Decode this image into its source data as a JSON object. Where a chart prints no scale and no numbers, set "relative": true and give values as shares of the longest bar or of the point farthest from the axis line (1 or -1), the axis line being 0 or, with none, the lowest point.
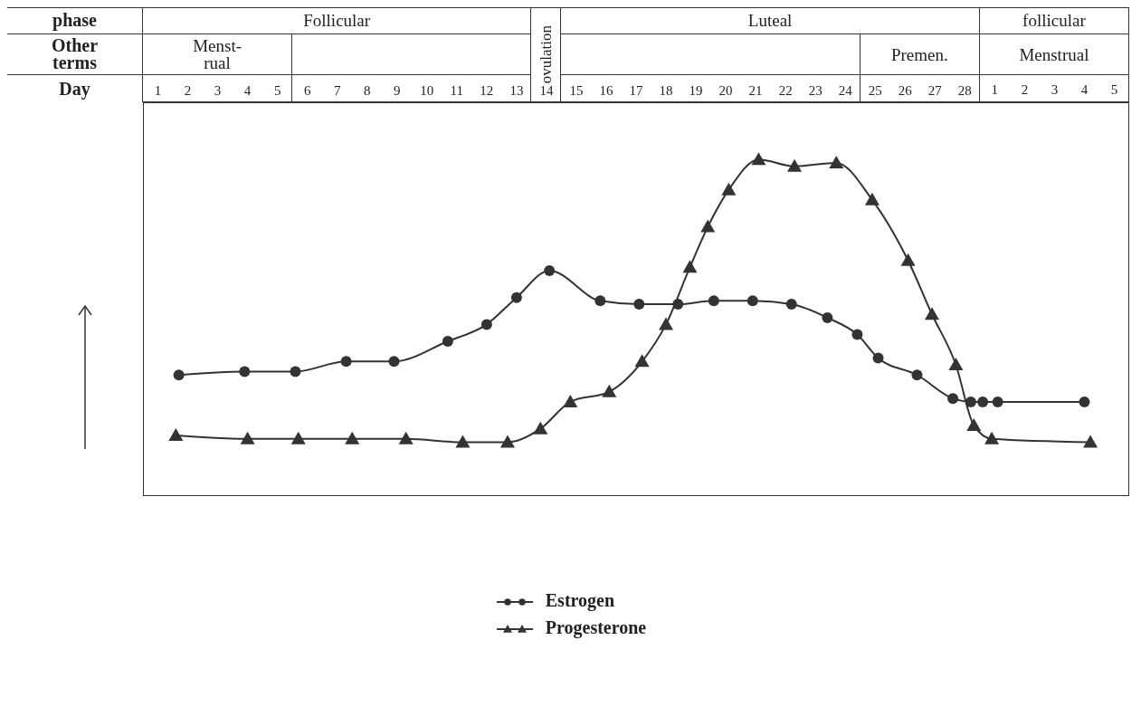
{
  "chart_data": {
    "type": "line",
    "relative": true,
    "legend": "bottom",
    "xlim": [
      0.5,
      33.5
    ],
    "xticks": [
      1,
      2,
      3,
      4,
      5,
      6,
      7,
      8,
      9,
      10,
      11,
      12,
      13,
      14,
      15,
      16,
      17,
      18,
      19,
      20,
      21,
      22,
      23,
      24,
      25,
      26,
      27,
      28
    ],
    "x2lim": [
      -27.5,
      5.5
    ],
    "x2ticks": [
      1,
      2,
      3,
      4,
      5
    ],
    "annotations": [
      "phase",
      "Other\nterms",
      "Day",
      "Follicular",
      "ovulation",
      "Luteal",
      "follicular",
      "Menst-\nrual",
      "Premen.",
      "Menstrual"
    ],
    "series": [
      {
        "name": "Estrogen",
        "color": "#333333",
        "marker": "circle",
        "x": [
          1.7,
          3.9,
          5.6,
          7.3,
          8.9,
          10.7,
          12,
          13,
          14.1,
          15.8,
          17.1,
          18.4,
          19.6,
          20.9,
          22.2,
          23.4,
          24.4,
          25.1,
          26.4,
          27.6,
          28.2,
          28.6,
          29.1,
          32
        ],
        "values": [
          0.36,
          0.37,
          0.37,
          0.4,
          0.4,
          0.46,
          0.51,
          0.59,
          0.67,
          0.58,
          0.57,
          0.57,
          0.58,
          0.58,
          0.57,
          0.53,
          0.48,
          0.41,
          0.36,
          0.29,
          0.28,
          0.28,
          0.28,
          0.28
        ]
      },
      {
        "name": "Progesterone",
        "color": "#333333",
        "marker": "triangle",
        "x": [
          1.6,
          4,
          5.7,
          7.5,
          9.3,
          11.2,
          12.7,
          13.8,
          14.8,
          16.1,
          17.2,
          18,
          18.8,
          19.4,
          20.1,
          21.1,
          22.3,
          23.7,
          24.9,
          26.1,
          26.9,
          27.7,
          28.3,
          28.9,
          32.2
        ],
        "values": [
          0.18,
          0.17,
          0.17,
          0.17,
          0.17,
          0.16,
          0.16,
          0.2,
          0.28,
          0.31,
          0.4,
          0.51,
          0.68,
          0.8,
          0.91,
          1,
          0.98,
          0.99,
          0.88,
          0.7,
          0.54,
          0.39,
          0.21,
          0.17,
          0.16
        ]
      }
    ]
  }
}
